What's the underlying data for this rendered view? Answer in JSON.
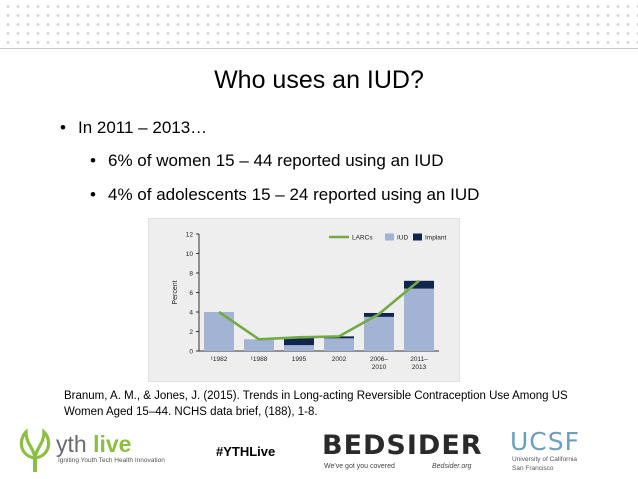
{
  "slide": {
    "title": "Who uses an IUD?",
    "bullets": [
      {
        "marker": "•",
        "text": "In 2011 – 2013…"
      },
      {
        "marker": "•",
        "text": "6% of women 15 – 44 reported using an IUD"
      },
      {
        "marker": "•",
        "text": "4% of adolescents 15 – 24 reported using an IUD"
      }
    ],
    "citation_line1": "Branum, A. M., & Jones, J. (2015). Trends in Long-acting Reversible Contraception Use Among US",
    "citation_line2": "Women Aged 15–44. NCHS data brief, (188), 1-8."
  },
  "footer": {
    "yth_brand_a": "yth",
    "yth_brand_b": " live",
    "yth_tagline": "Igniting Youth Tech Health Innovation",
    "hashtag": "#YTHLive",
    "bedsider": "BEDSIDER",
    "bedsider_tagline": "We've got you covered",
    "bedsider_url": "Bedsider.org",
    "ucsf": "UCSF",
    "ucsf_line1": "University of California",
    "ucsf_line2": "San Francisco",
    "colors": {
      "yth_green": "#8bbf3f",
      "ucsf_blue": "#6d9fbd"
    }
  },
  "chart_data": {
    "type": "bar",
    "categories": [
      "¹1982",
      "¹1988",
      "1995",
      "2002",
      "2006–2010",
      "2011–2013"
    ],
    "category_lines": [
      [
        "¹1982"
      ],
      [
        "¹1988"
      ],
      [
        "1995"
      ],
      [
        "2002"
      ],
      [
        "2006–",
        "2010"
      ],
      [
        "2011–",
        "2013"
      ]
    ],
    "ylabel": "Percent",
    "ylim": [
      0,
      12
    ],
    "yticks": [
      0,
      2,
      4,
      6,
      8,
      10,
      12
    ],
    "stacked": true,
    "series": [
      {
        "name": "IUD",
        "values": [
          4.0,
          1.2,
          0.6,
          1.3,
          3.5,
          6.4
        ],
        "color": "#a3b3d3"
      },
      {
        "name": "Implant",
        "values": [
          0.0,
          0.0,
          0.8,
          0.2,
          0.4,
          0.8
        ],
        "color": "#10264f"
      }
    ],
    "line_series": {
      "name": "LARCs",
      "values": [
        4.0,
        1.2,
        1.4,
        1.5,
        3.8,
        7.2
      ],
      "color": "#72ab43"
    },
    "legend": "top-right",
    "grid": false
  }
}
